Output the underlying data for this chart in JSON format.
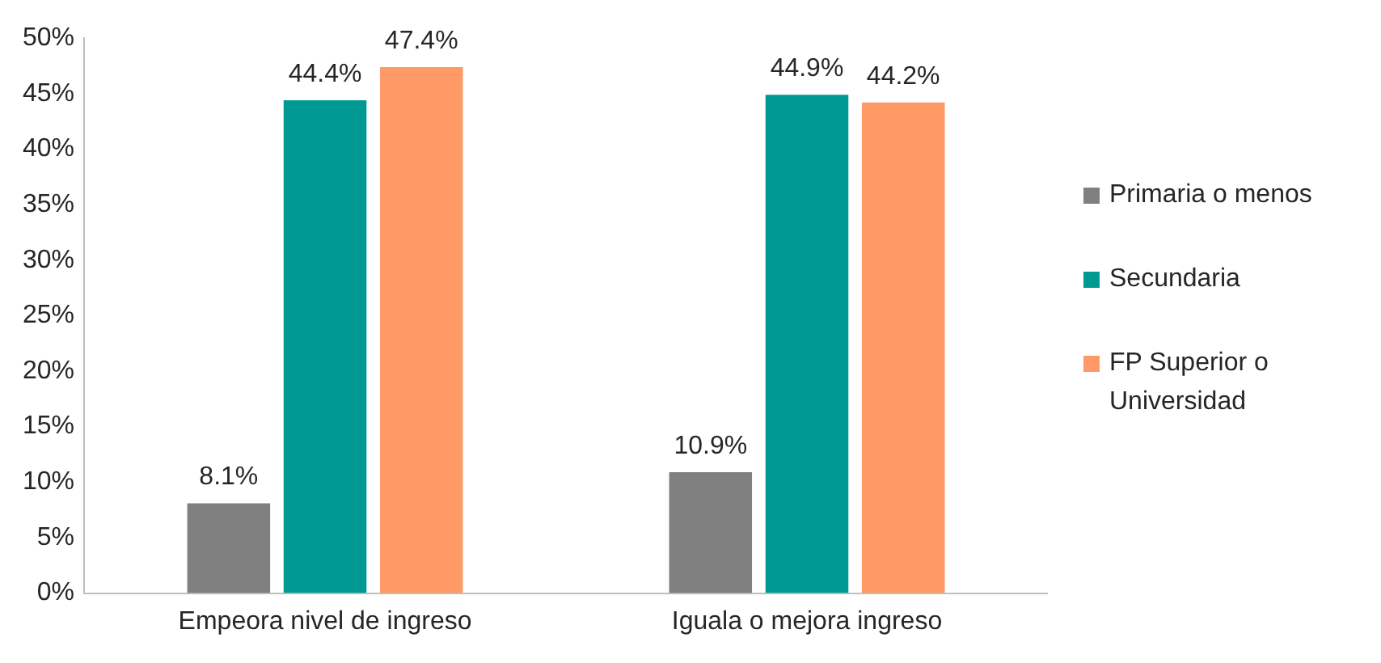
{
  "chart_data": {
    "type": "bar",
    "categories": [
      "Empeora nivel de ingreso",
      "Iguala o mejora ingreso"
    ],
    "series": [
      {
        "name": "Primaria o menos",
        "color": "#808080",
        "values": [
          8.1,
          10.9
        ],
        "value_labels": [
          "8.1%",
          "10.9%"
        ]
      },
      {
        "name": "Secundaria",
        "color": "#009a93",
        "values": [
          44.4,
          44.9
        ],
        "value_labels": [
          "44.4%",
          "44.9%"
        ]
      },
      {
        "name": "FP Superior o Universidad",
        "color": "#ff9966",
        "values": [
          47.4,
          44.2
        ],
        "value_labels": [
          "47.4%",
          "44.2%"
        ]
      }
    ],
    "ylim": [
      0,
      50
    ],
    "yticks": [
      {
        "value": 0,
        "label": "0%"
      },
      {
        "value": 5,
        "label": "5%"
      },
      {
        "value": 10,
        "label": "10%"
      },
      {
        "value": 15,
        "label": "15%"
      },
      {
        "value": 20,
        "label": "20%"
      },
      {
        "value": 25,
        "label": "25%"
      },
      {
        "value": 30,
        "label": "30%"
      },
      {
        "value": 35,
        "label": "35%"
      },
      {
        "value": 40,
        "label": "40%"
      },
      {
        "value": 45,
        "label": "45%"
      },
      {
        "value": 50,
        "label": "50%"
      }
    ],
    "grid": false,
    "legend": "right"
  }
}
